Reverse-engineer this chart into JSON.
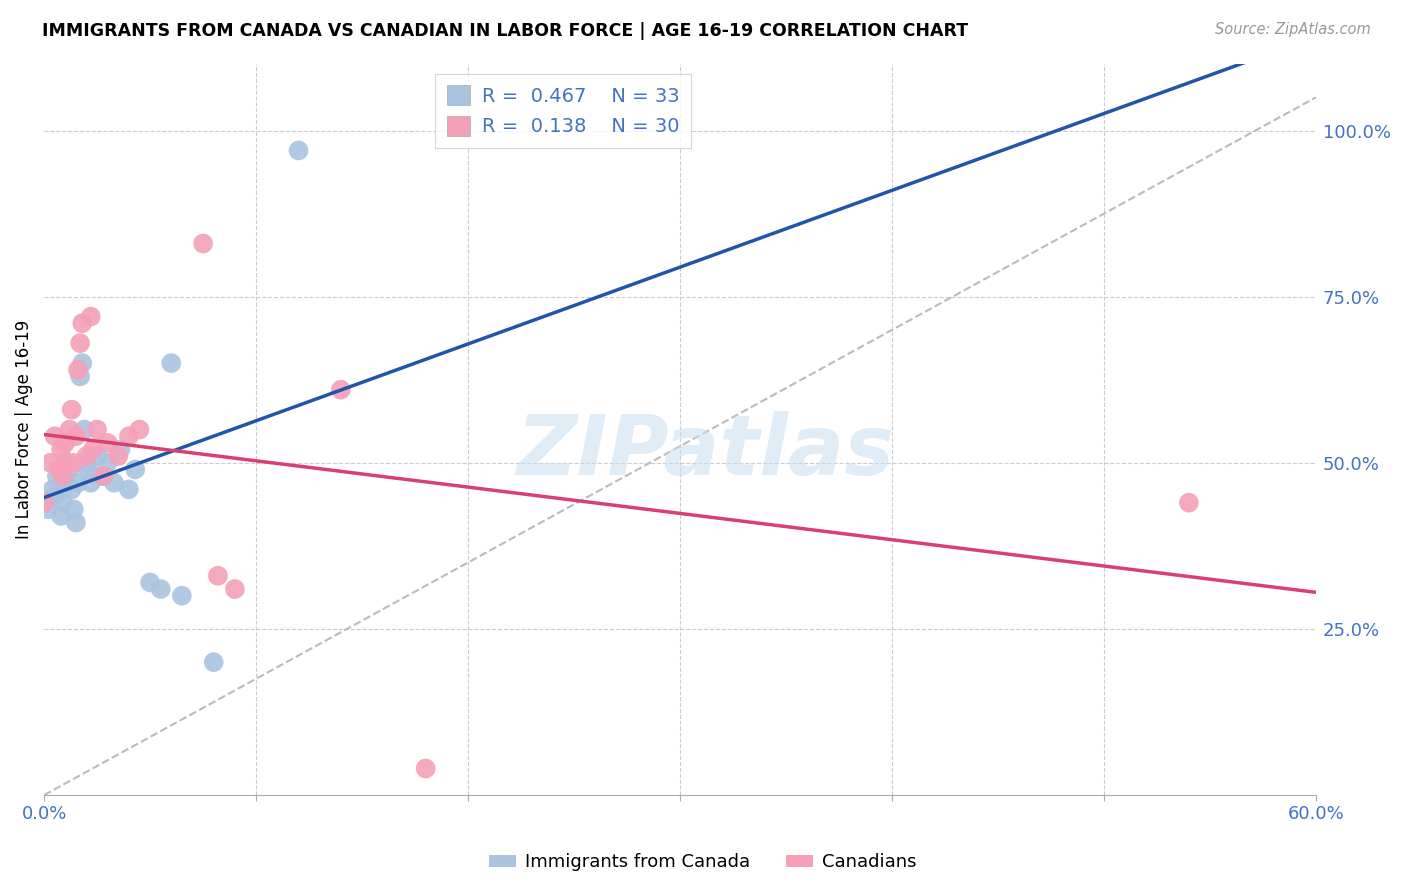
{
  "title": "IMMIGRANTS FROM CANADA VS CANADIAN IN LABOR FORCE | AGE 16-19 CORRELATION CHART",
  "source": "Source: ZipAtlas.com",
  "ylabel": "In Labor Force | Age 16-19",
  "xlim": [
    0.0,
    0.6
  ],
  "ylim": [
    0.0,
    1.1
  ],
  "watermark": "ZIPatlas",
  "series": [
    {
      "name": "Immigrants from Canada",
      "R": 0.467,
      "N": 33,
      "color": "#aac4e0",
      "line_color": "#2255aa",
      "x": [
        0.0,
        0.002,
        0.004,
        0.005,
        0.006,
        0.008,
        0.009,
        0.01,
        0.011,
        0.012,
        0.013,
        0.014,
        0.015,
        0.016,
        0.017,
        0.018,
        0.019,
        0.02,
        0.021,
        0.022,
        0.025,
        0.027,
        0.03,
        0.033,
        0.036,
        0.04,
        0.043,
        0.05,
        0.055,
        0.06,
        0.065,
        0.08,
        0.12
      ],
      "y": [
        0.44,
        0.43,
        0.46,
        0.45,
        0.48,
        0.42,
        0.44,
        0.5,
        0.47,
        0.49,
        0.46,
        0.43,
        0.41,
        0.47,
        0.63,
        0.65,
        0.55,
        0.5,
        0.49,
        0.47,
        0.51,
        0.48,
        0.5,
        0.47,
        0.52,
        0.46,
        0.49,
        0.32,
        0.31,
        0.65,
        0.3,
        0.2,
        0.97
      ]
    },
    {
      "name": "Canadians",
      "R": 0.138,
      "N": 30,
      "color": "#f4a0b8",
      "line_color": "#d94070",
      "x": [
        0.0,
        0.003,
        0.005,
        0.007,
        0.008,
        0.009,
        0.01,
        0.011,
        0.012,
        0.013,
        0.014,
        0.015,
        0.016,
        0.017,
        0.018,
        0.02,
        0.022,
        0.023,
        0.025,
        0.028,
        0.03,
        0.035,
        0.04,
        0.045,
        0.075,
        0.082,
        0.09,
        0.14,
        0.18,
        0.54
      ],
      "y": [
        0.44,
        0.5,
        0.54,
        0.49,
        0.52,
        0.48,
        0.53,
        0.5,
        0.55,
        0.58,
        0.5,
        0.54,
        0.64,
        0.68,
        0.71,
        0.51,
        0.72,
        0.52,
        0.55,
        0.48,
        0.53,
        0.51,
        0.54,
        0.55,
        0.83,
        0.33,
        0.31,
        0.61,
        0.04,
        0.44
      ]
    }
  ]
}
